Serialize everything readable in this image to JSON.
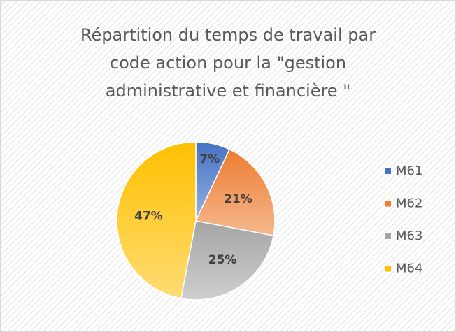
{
  "chart_data": {
    "type": "pie",
    "title": "Répartition du temps de travail par code action pour la \"gestion administrative et financière \"",
    "categories": [
      "M61",
      "M62",
      "M63",
      "M64"
    ],
    "values": [
      7,
      21,
      25,
      47
    ],
    "value_labels": [
      "7%",
      "21%",
      "25%",
      "47%"
    ],
    "colors": [
      "#4472c4",
      "#ed7d31",
      "#a5a5a5",
      "#ffc000"
    ],
    "legend": "right"
  }
}
